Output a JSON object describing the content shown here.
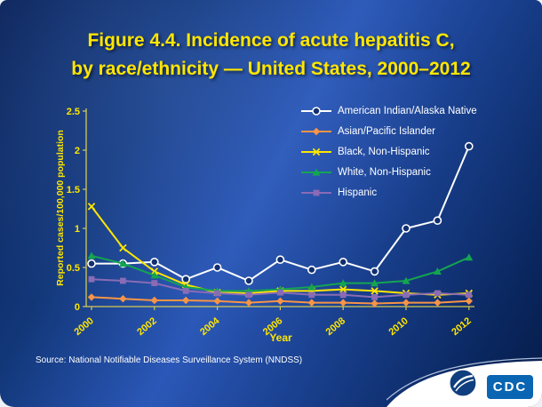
{
  "slide": {
    "title_line1": "Figure 4.4. Incidence of acute hepatitis C,",
    "title_line2": "by race/ethnicity — United States, 2000–2012",
    "source": "Source: National Notifiable Diseases Surveillance System (NNDSS)",
    "logo_text": "CDC"
  },
  "colors": {
    "title": "#ffe600",
    "axis": "#d6c94f",
    "tick_label": "#ffe600",
    "legend_text": "#ffffff",
    "background": "#123a7f",
    "cdc_logo_blue": "#0a65b2",
    "marker_fill_open": "#102f6f"
  },
  "chart_data": {
    "type": "line",
    "title": "Figure 4.4. Incidence of acute hepatitis C, by race/ethnicity — United States, 2000–2012",
    "xlabel": "Year",
    "ylabel": "Reported cases/100,000 population",
    "x": [
      2000,
      2001,
      2002,
      2003,
      2004,
      2005,
      2006,
      2007,
      2008,
      2009,
      2010,
      2011,
      2012
    ],
    "x_tick_labels": [
      "2000",
      "2002",
      "2004",
      "2006",
      "2008",
      "2010",
      "2012"
    ],
    "ylim": [
      0,
      2.5
    ],
    "yticks": [
      0,
      0.5,
      1,
      1.5,
      2,
      2.5
    ],
    "ytick_labels": [
      "0",
      "0.5",
      "1",
      "1.5",
      "2",
      "2.5"
    ],
    "grid": false,
    "legend_position": "top-right",
    "series": [
      {
        "name": "American Indian/Alaska Native",
        "color": "#ffffff",
        "marker": "circle-open",
        "values": [
          0.55,
          0.55,
          0.57,
          0.35,
          0.5,
          0.33,
          0.6,
          0.47,
          0.57,
          0.45,
          1.0,
          1.1,
          2.05
        ]
      },
      {
        "name": "Asian/Pacific Islander",
        "color": "#f79447",
        "marker": "diamond",
        "values": [
          0.12,
          0.1,
          0.08,
          0.08,
          0.07,
          0.05,
          0.07,
          0.05,
          0.05,
          0.04,
          0.05,
          0.05,
          0.07
        ]
      },
      {
        "name": "Black, Non-Hispanic",
        "color": "#ffe600",
        "marker": "x",
        "values": [
          1.28,
          0.75,
          0.45,
          0.28,
          0.18,
          0.17,
          0.2,
          0.2,
          0.22,
          0.2,
          0.17,
          0.15,
          0.17
        ]
      },
      {
        "name": "White, Non-Hispanic",
        "color": "#14a550",
        "marker": "triangle",
        "values": [
          0.65,
          0.55,
          0.4,
          0.25,
          0.2,
          0.2,
          0.22,
          0.25,
          0.3,
          0.3,
          0.33,
          0.45,
          0.63
        ]
      },
      {
        "name": "Hispanic",
        "color": "#8a6bb5",
        "marker": "square",
        "values": [
          0.35,
          0.33,
          0.3,
          0.2,
          0.17,
          0.15,
          0.18,
          0.15,
          0.15,
          0.12,
          0.15,
          0.17,
          0.15
        ]
      }
    ]
  }
}
